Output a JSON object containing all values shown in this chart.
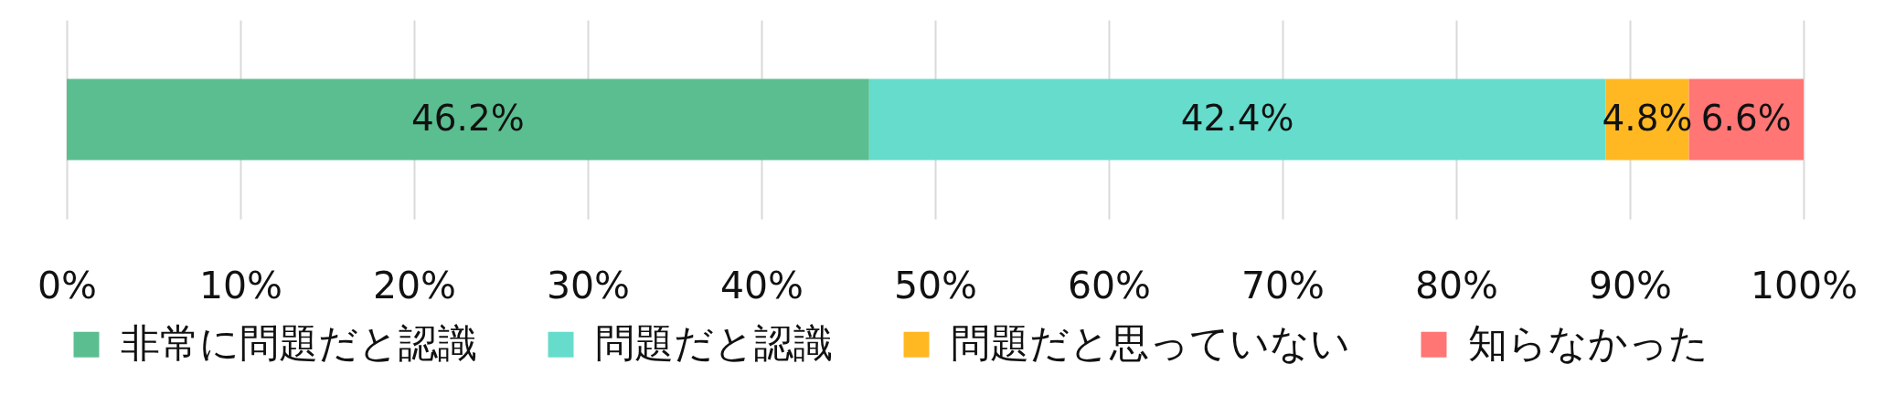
{
  "chart_data": {
    "type": "bar",
    "orientation": "horizontal",
    "stacked": true,
    "categories": [
      null
    ],
    "series": [
      {
        "name": "非常に問題だと認識",
        "color": "#5bbe90",
        "values": [
          46.2
        ],
        "value_labels": [
          "46.2%"
        ]
      },
      {
        "name": "問題だと認識",
        "color": "#66dccc",
        "values": [
          42.4
        ],
        "value_labels": [
          "42.4%"
        ]
      },
      {
        "name": "問題だと思っていない",
        "color": "#ffb822",
        "values": [
          4.8
        ],
        "value_labels": [
          "4.8%"
        ]
      },
      {
        "name": "知らなかった",
        "color": "#ff7675",
        "values": [
          6.6
        ],
        "value_labels": [
          "6.6%"
        ]
      }
    ],
    "xlim": [
      0,
      100
    ],
    "xticks": [
      {
        "value": 0,
        "label": "0%"
      },
      {
        "value": 10,
        "label": "10%"
      },
      {
        "value": 20,
        "label": "20%"
      },
      {
        "value": 30,
        "label": "30%"
      },
      {
        "value": 40,
        "label": "40%"
      },
      {
        "value": 50,
        "label": "50%"
      },
      {
        "value": 60,
        "label": "60%"
      },
      {
        "value": 70,
        "label": "70%"
      },
      {
        "value": 80,
        "label": "80%"
      },
      {
        "value": 90,
        "label": "90%"
      },
      {
        "value": 100,
        "label": "100%"
      }
    ],
    "grid": "x",
    "legend": "bottom",
    "tick_labels": "x"
  }
}
